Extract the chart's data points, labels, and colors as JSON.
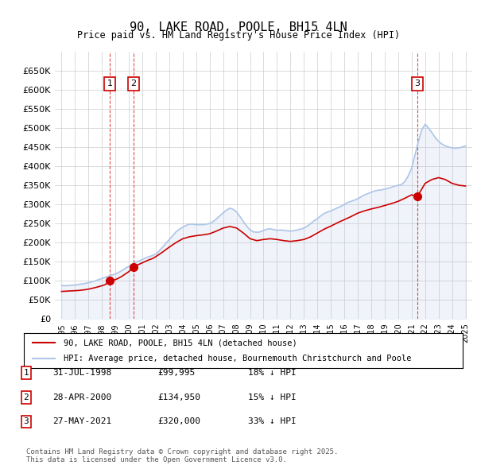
{
  "title": "90, LAKE ROAD, POOLE, BH15 4LN",
  "subtitle": "Price paid vs. HM Land Registry's House Price Index (HPI)",
  "ylabel_prefix": "£",
  "background_color": "#ffffff",
  "grid_color": "#cccccc",
  "hpi_color": "#aec6e8",
  "price_color": "#cc0000",
  "sale_marker_color": "#cc0000",
  "annotation_box_color": "#cc0000",
  "xlim_start": 1994.5,
  "xlim_end": 2025.5,
  "ylim_min": 0,
  "ylim_max": 700000,
  "ytick_values": [
    0,
    50000,
    100000,
    150000,
    200000,
    250000,
    300000,
    350000,
    400000,
    450000,
    500000,
    550000,
    600000,
    650000
  ],
  "ytick_labels": [
    "£0",
    "£50K",
    "£100K",
    "£150K",
    "£200K",
    "£250K",
    "£300K",
    "£350K",
    "£400K",
    "£450K",
    "£500K",
    "£550K",
    "£600K",
    "£650K"
  ],
  "xtick_years": [
    1995,
    1996,
    1997,
    1998,
    1999,
    2000,
    2001,
    2002,
    2003,
    2004,
    2005,
    2006,
    2007,
    2008,
    2009,
    2010,
    2011,
    2012,
    2013,
    2014,
    2015,
    2016,
    2017,
    2018,
    2019,
    2020,
    2021,
    2022,
    2023,
    2024,
    2025
  ],
  "sale_dates": [
    1998.58,
    2000.33,
    2021.41
  ],
  "sale_prices": [
    99995,
    134950,
    320000
  ],
  "sale_labels": [
    "1",
    "2",
    "3"
  ],
  "legend_line1": "90, LAKE ROAD, POOLE, BH15 4LN (detached house)",
  "legend_line2": "HPI: Average price, detached house, Bournemouth Christchurch and Poole",
  "table_rows": [
    {
      "num": "1",
      "date": "31-JUL-1998",
      "price": "£99,995",
      "note": "18% ↓ HPI"
    },
    {
      "num": "2",
      "date": "28-APR-2000",
      "price": "£134,950",
      "note": "15% ↓ HPI"
    },
    {
      "num": "3",
      "date": "27-MAY-2021",
      "price": "£320,000",
      "note": "33% ↓ HPI"
    }
  ],
  "footer": "Contains HM Land Registry data © Crown copyright and database right 2025.\nThis data is licensed under the Open Government Licence v3.0.",
  "hpi_data_x": [
    1995.0,
    1995.25,
    1995.5,
    1995.75,
    1996.0,
    1996.25,
    1996.5,
    1996.75,
    1997.0,
    1997.25,
    1997.5,
    1997.75,
    1998.0,
    1998.25,
    1998.5,
    1998.75,
    1999.0,
    1999.25,
    1999.5,
    1999.75,
    2000.0,
    2000.25,
    2000.5,
    2000.75,
    2001.0,
    2001.25,
    2001.5,
    2001.75,
    2002.0,
    2002.25,
    2002.5,
    2002.75,
    2003.0,
    2003.25,
    2003.5,
    2003.75,
    2004.0,
    2004.25,
    2004.5,
    2004.75,
    2005.0,
    2005.25,
    2005.5,
    2005.75,
    2006.0,
    2006.25,
    2006.5,
    2006.75,
    2007.0,
    2007.25,
    2007.5,
    2007.75,
    2008.0,
    2008.25,
    2008.5,
    2008.75,
    2009.0,
    2009.25,
    2009.5,
    2009.75,
    2010.0,
    2010.25,
    2010.5,
    2010.75,
    2011.0,
    2011.25,
    2011.5,
    2011.75,
    2012.0,
    2012.25,
    2012.5,
    2012.75,
    2013.0,
    2013.25,
    2013.5,
    2013.75,
    2014.0,
    2014.25,
    2014.5,
    2014.75,
    2015.0,
    2015.25,
    2015.5,
    2015.75,
    2016.0,
    2016.25,
    2016.5,
    2016.75,
    2017.0,
    2017.25,
    2017.5,
    2017.75,
    2018.0,
    2018.25,
    2018.5,
    2018.75,
    2019.0,
    2019.25,
    2019.5,
    2019.75,
    2020.0,
    2020.25,
    2020.5,
    2020.75,
    2021.0,
    2021.25,
    2021.5,
    2021.75,
    2022.0,
    2022.25,
    2022.5,
    2022.75,
    2023.0,
    2023.25,
    2023.5,
    2023.75,
    2024.0,
    2024.25,
    2024.5,
    2024.75,
    2025.0
  ],
  "hpi_data_y": [
    88000,
    87000,
    87500,
    88000,
    89000,
    90000,
    91500,
    93000,
    95000,
    97000,
    100000,
    103000,
    106000,
    109000,
    112000,
    115000,
    118000,
    122000,
    127000,
    133000,
    138000,
    143000,
    148000,
    152000,
    156000,
    160000,
    163000,
    166000,
    170000,
    178000,
    188000,
    198000,
    208000,
    218000,
    228000,
    235000,
    240000,
    245000,
    248000,
    248000,
    247000,
    247000,
    247000,
    248000,
    250000,
    255000,
    262000,
    270000,
    278000,
    285000,
    290000,
    287000,
    280000,
    268000,
    255000,
    243000,
    233000,
    228000,
    227000,
    228000,
    232000,
    235000,
    236000,
    234000,
    232000,
    233000,
    232000,
    231000,
    230000,
    231000,
    233000,
    235000,
    238000,
    243000,
    250000,
    257000,
    263000,
    270000,
    276000,
    280000,
    283000,
    287000,
    291000,
    295000,
    300000,
    305000,
    308000,
    311000,
    315000,
    320000,
    325000,
    328000,
    332000,
    335000,
    337000,
    338000,
    340000,
    342000,
    345000,
    348000,
    350000,
    352000,
    360000,
    375000,
    395000,
    430000,
    465000,
    495000,
    510000,
    500000,
    488000,
    475000,
    465000,
    458000,
    453000,
    450000,
    448000,
    447000,
    448000,
    450000,
    453000
  ],
  "price_line_x": [
    1995.0,
    1995.25,
    1995.5,
    1995.75,
    1996.0,
    1996.25,
    1996.5,
    1996.75,
    1997.0,
    1997.25,
    1997.5,
    1997.75,
    1998.0,
    1998.25,
    1998.58,
    1998.75,
    1999.0,
    1999.25,
    1999.5,
    1999.75,
    2000.0,
    2000.33,
    2000.5,
    2000.75,
    2001.0,
    2001.25,
    2001.5,
    2001.75,
    2002.0,
    2002.5,
    2003.0,
    2003.5,
    2004.0,
    2004.5,
    2005.0,
    2005.5,
    2006.0,
    2006.5,
    2007.0,
    2007.5,
    2008.0,
    2008.5,
    2009.0,
    2009.5,
    2010.0,
    2010.5,
    2011.0,
    2011.5,
    2012.0,
    2012.5,
    2013.0,
    2013.5,
    2014.0,
    2014.5,
    2015.0,
    2015.5,
    2016.0,
    2016.5,
    2017.0,
    2017.5,
    2018.0,
    2018.5,
    2019.0,
    2019.5,
    2020.0,
    2020.5,
    2021.0,
    2021.41,
    2021.75,
    2022.0,
    2022.5,
    2023.0,
    2023.5,
    2024.0,
    2024.5,
    2025.0
  ],
  "price_line_y": [
    72000,
    72500,
    73000,
    73500,
    74000,
    74500,
    75500,
    76500,
    78000,
    80000,
    82000,
    84500,
    87000,
    90000,
    99995,
    101000,
    103000,
    107000,
    112000,
    118000,
    124000,
    134950,
    139000,
    143000,
    147000,
    151000,
    155000,
    158000,
    163000,
    175000,
    188000,
    200000,
    210000,
    215000,
    218000,
    220000,
    223000,
    230000,
    238000,
    242000,
    238000,
    225000,
    210000,
    205000,
    208000,
    210000,
    208000,
    205000,
    203000,
    205000,
    208000,
    215000,
    225000,
    235000,
    243000,
    252000,
    260000,
    268000,
    277000,
    283000,
    288000,
    292000,
    297000,
    302000,
    308000,
    316000,
    325000,
    320000,
    340000,
    355000,
    365000,
    370000,
    365000,
    355000,
    350000,
    348000
  ]
}
